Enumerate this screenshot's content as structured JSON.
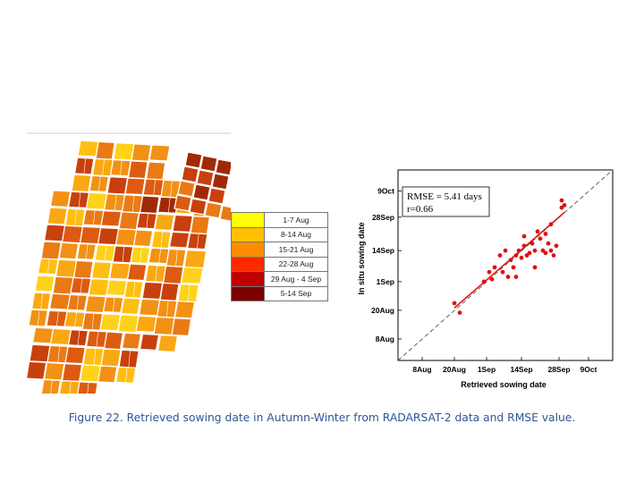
{
  "caption": "Figure 22. Retrieved sowing date in Autumn-Winter from  RADARSAT-2 data and RMSE value.",
  "legend": {
    "items": [
      {
        "label": "1-7 Aug",
        "color": "#ffff00"
      },
      {
        "label": "8-14 Aug",
        "color": "#ffc000"
      },
      {
        "label": "15-21 Aug",
        "color": "#ff8c00"
      },
      {
        "label": "22-28 Aug",
        "color": "#ff2a00"
      },
      {
        "label": "29 Aug - 4 Sep",
        "color": "#c00000"
      },
      {
        "label": "5-14 Sep",
        "color": "#7a0000"
      }
    ]
  },
  "chart_data": {
    "type": "scatter",
    "xlabel": "Retrieved sowing date",
    "ylabel": "In situ sowing date",
    "x_ticks": [
      "8Aug",
      "20Aug",
      "1Sep",
      "14Sep",
      "28Sep",
      "9Oct"
    ],
    "y_ticks": [
      "8Aug",
      "20Aug",
      "1Sep",
      "14Sep",
      "28Sep",
      "9Oct"
    ],
    "annotation": [
      "RMSE = 5.41 days",
      "r=0.66"
    ],
    "grid": false,
    "reference_line": "1:1 dashed",
    "regression_line": "red",
    "point_color": "#e01010",
    "points": [
      [
        "2024-08-20",
        "2024-08-23"
      ],
      [
        "2024-08-22",
        "2024-08-19"
      ],
      [
        "2024-08-31",
        "2024-09-01"
      ],
      [
        "2024-09-02",
        "2024-09-05"
      ],
      [
        "2024-09-03",
        "2024-09-02"
      ],
      [
        "2024-09-04",
        "2024-09-07"
      ],
      [
        "2024-09-06",
        "2024-09-12"
      ],
      [
        "2024-09-07",
        "2024-09-05"
      ],
      [
        "2024-09-08",
        "2024-09-14"
      ],
      [
        "2024-09-09",
        "2024-09-03"
      ],
      [
        "2024-09-10",
        "2024-09-10"
      ],
      [
        "2024-09-11",
        "2024-09-07"
      ],
      [
        "2024-09-12",
        "2024-09-12"
      ],
      [
        "2024-09-12",
        "2024-09-03"
      ],
      [
        "2024-09-13",
        "2024-09-14"
      ],
      [
        "2024-09-14",
        "2024-09-11"
      ],
      [
        "2024-09-15",
        "2024-09-16"
      ],
      [
        "2024-09-15",
        "2024-09-20"
      ],
      [
        "2024-09-16",
        "2024-09-12"
      ],
      [
        "2024-09-17",
        "2024-09-13"
      ],
      [
        "2024-09-18",
        "2024-09-17"
      ],
      [
        "2024-09-19",
        "2024-09-07"
      ],
      [
        "2024-09-19",
        "2024-09-14"
      ],
      [
        "2024-09-20",
        "2024-09-22"
      ],
      [
        "2024-09-21",
        "2024-09-19"
      ],
      [
        "2024-09-22",
        "2024-09-14"
      ],
      [
        "2024-09-23",
        "2024-09-13"
      ],
      [
        "2024-09-23",
        "2024-09-21"
      ],
      [
        "2024-09-24",
        "2024-09-17"
      ],
      [
        "2024-09-25",
        "2024-09-14"
      ],
      [
        "2024-09-25",
        "2024-09-25"
      ],
      [
        "2024-09-26",
        "2024-09-12"
      ],
      [
        "2024-09-27",
        "2024-09-16"
      ],
      [
        "2024-09-29",
        "2024-10-02"
      ],
      [
        "2024-09-29",
        "2024-10-05"
      ],
      [
        "2024-09-30",
        "2024-10-03"
      ]
    ]
  }
}
